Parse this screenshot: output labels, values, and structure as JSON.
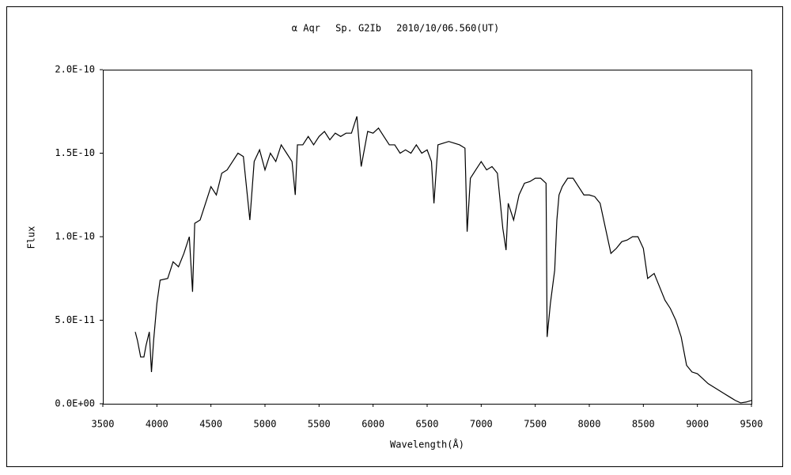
{
  "chart_data": {
    "type": "line",
    "title": "α Aqr　 Sp. G2Ib　 2010/10/06.560(UT)",
    "x_label": "Wavelength(Å)",
    "y_label": "Flux",
    "xlim": [
      3500,
      9500
    ],
    "xticks": [
      3500,
      4000,
      4500,
      5000,
      5500,
      6000,
      6500,
      7000,
      7500,
      8000,
      8500,
      9000,
      9500
    ],
    "ylim": [
      0,
      2e-10
    ],
    "yticks": [
      {
        "value": 0,
        "label": "0.0E+00"
      },
      {
        "value": 5e-11,
        "label": "5.0E-11"
      },
      {
        "value": 1e-10,
        "label": "1.0E-10"
      },
      {
        "value": 1.5e-10,
        "label": "1.5E-10"
      },
      {
        "value": 2e-10,
        "label": "2.0E-10"
      }
    ],
    "grid": false,
    "color": "#000000",
    "x": [
      3800,
      3820,
      3850,
      3880,
      3900,
      3930,
      3950,
      3970,
      4000,
      4030,
      4100,
      4150,
      4200,
      4250,
      4300,
      4330,
      4350,
      4400,
      4450,
      4500,
      4550,
      4600,
      4650,
      4700,
      4750,
      4800,
      4860,
      4900,
      4950,
      5000,
      5050,
      5100,
      5150,
      5200,
      5250,
      5280,
      5300,
      5350,
      5400,
      5450,
      5500,
      5550,
      5600,
      5650,
      5700,
      5750,
      5800,
      5850,
      5890,
      5950,
      6000,
      6050,
      6100,
      6150,
      6200,
      6250,
      6300,
      6350,
      6400,
      6450,
      6500,
      6540,
      6563,
      6600,
      6650,
      6700,
      6750,
      6800,
      6850,
      6870,
      6900,
      6950,
      7000,
      7050,
      7100,
      7150,
      7200,
      7230,
      7250,
      7300,
      7350,
      7400,
      7450,
      7500,
      7550,
      7600,
      7610,
      7640,
      7680,
      7700,
      7720,
      7750,
      7800,
      7850,
      7900,
      7950,
      8000,
      8050,
      8100,
      8150,
      8200,
      8250,
      8300,
      8350,
      8400,
      8450,
      8500,
      8540,
      8600,
      8650,
      8700,
      8750,
      8800,
      8850,
      8900,
      8950,
      9000,
      9050,
      9100,
      9150,
      9200,
      9250,
      9300,
      9350,
      9400,
      9450,
      9500
    ],
    "values": [
      4.3e-11,
      3.8e-11,
      2.8e-11,
      2.8e-11,
      3.5e-11,
      4.3e-11,
      1.9e-11,
      3.8e-11,
      6e-11,
      7.4e-11,
      7.5e-11,
      8.5e-11,
      8.2e-11,
      9e-11,
      1e-10,
      6.7e-11,
      1.08e-10,
      1.1e-10,
      1.2e-10,
      1.3e-10,
      1.25e-10,
      1.38e-10,
      1.4e-10,
      1.45e-10,
      1.5e-10,
      1.48e-10,
      1.1e-10,
      1.45e-10,
      1.52e-10,
      1.4e-10,
      1.5e-10,
      1.45e-10,
      1.55e-10,
      1.5e-10,
      1.45e-10,
      1.25e-10,
      1.55e-10,
      1.55e-10,
      1.6e-10,
      1.55e-10,
      1.6e-10,
      1.63e-10,
      1.58e-10,
      1.62e-10,
      1.6e-10,
      1.62e-10,
      1.62e-10,
      1.72e-10,
      1.42e-10,
      1.63e-10,
      1.62e-10,
      1.65e-10,
      1.6e-10,
      1.55e-10,
      1.55e-10,
      1.5e-10,
      1.52e-10,
      1.5e-10,
      1.55e-10,
      1.5e-10,
      1.52e-10,
      1.45e-10,
      1.2e-10,
      1.55e-10,
      1.56e-10,
      1.57e-10,
      1.56e-10,
      1.55e-10,
      1.53e-10,
      1.03e-10,
      1.35e-10,
      1.4e-10,
      1.45e-10,
      1.4e-10,
      1.42e-10,
      1.38e-10,
      1.05e-10,
      9.2e-11,
      1.2e-10,
      1.1e-10,
      1.25e-10,
      1.32e-10,
      1.33e-10,
      1.35e-10,
      1.35e-10,
      1.32e-10,
      4e-11,
      6e-11,
      8e-11,
      1.1e-10,
      1.25e-10,
      1.3e-10,
      1.35e-10,
      1.35e-10,
      1.3e-10,
      1.25e-10,
      1.25e-10,
      1.24e-10,
      1.2e-10,
      1.05e-10,
      9e-11,
      9.3e-11,
      9.7e-11,
      9.8e-11,
      1e-10,
      1e-10,
      9.3e-11,
      7.5e-11,
      7.8e-11,
      7e-11,
      6.2e-11,
      5.7e-11,
      5e-11,
      4e-11,
      2.3e-11,
      1.9e-11,
      1.8e-11,
      1.5e-11,
      1.2e-11,
      1e-11,
      8e-12,
      6e-12,
      4e-12,
      2e-12,
      5e-13,
      1e-12,
      2e-12
    ]
  }
}
